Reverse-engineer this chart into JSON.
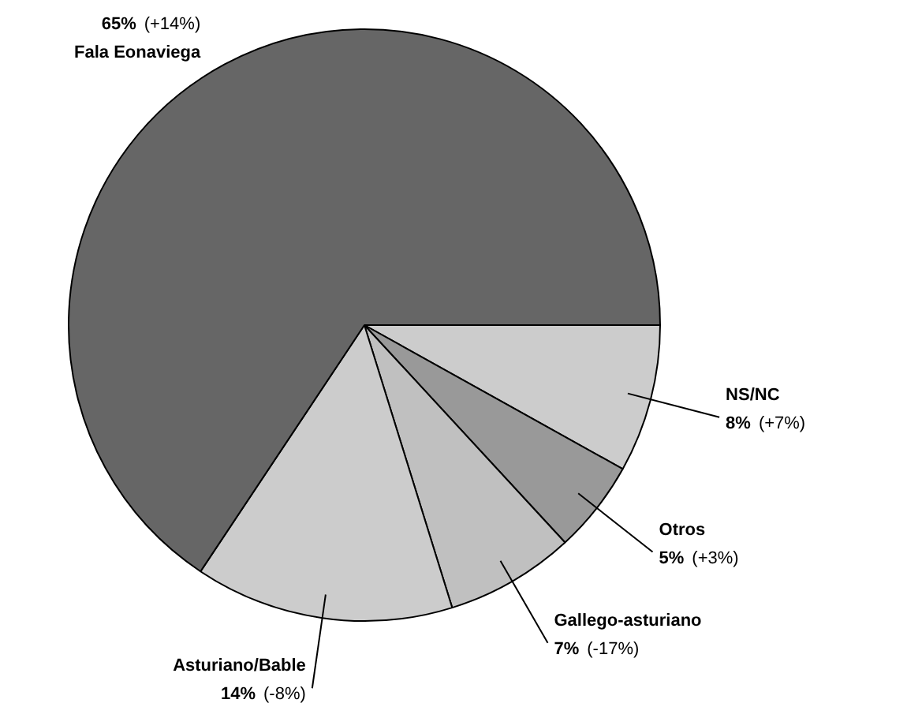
{
  "chart_data": {
    "type": "pie",
    "categories": [
      "NS/NC",
      "Otros",
      "Gallego-asturiano",
      "Asturiano/Bable",
      "Fala Eonaviega"
    ],
    "values": [
      8,
      5,
      7,
      14,
      65
    ],
    "colors": [
      "#cccccc",
      "#999999",
      "#c0c0c0",
      "#cccccc",
      "#666666"
    ],
    "value_labels": [
      "8%",
      "5%",
      "7%",
      "14%",
      "65%"
    ],
    "annotations": [
      "(+7%)",
      "(+3%)",
      "(-17%)",
      "(-8%)",
      "(+14%)"
    ],
    "legend": false
  }
}
